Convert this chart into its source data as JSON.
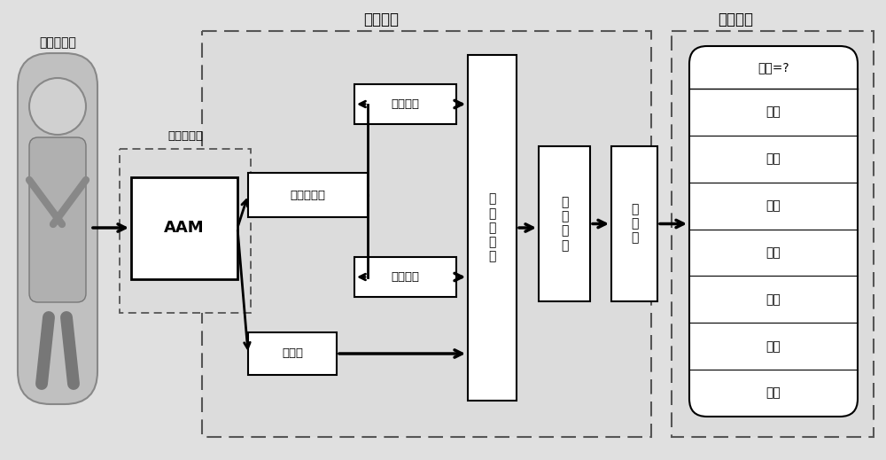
{
  "bg_color": "#e8e8e8",
  "title_tezheng": "特征提取",
  "title_fenlei": "分类实验",
  "label_renlian": "人脸数据库",
  "label_tezhengdingwei": "特征点定位",
  "box_aam": "AAM",
  "box_tezhengdianvector": "特征点矢量",
  "box_lianjianchangdu": "连线长度",
  "box_lianjianjiajiao": "连线夹角",
  "box_tezhengkuai": "特征块",
  "box_shujubiaozhunhua": "数\n据\n标\n准\n化",
  "box_tezhengronghe": "特\n征\n融\n合",
  "box_fenleiqi": "分\n类\n器",
  "output_label": "输出=?",
  "emotions": [
    "高兴",
    "悲伤",
    "惊讶",
    "生气",
    "嫌恶",
    "害怕",
    "中性"
  ],
  "bold_emotion_index": 3,
  "fig_w": 10.0,
  "fig_h": 5.19,
  "dpi": 100
}
